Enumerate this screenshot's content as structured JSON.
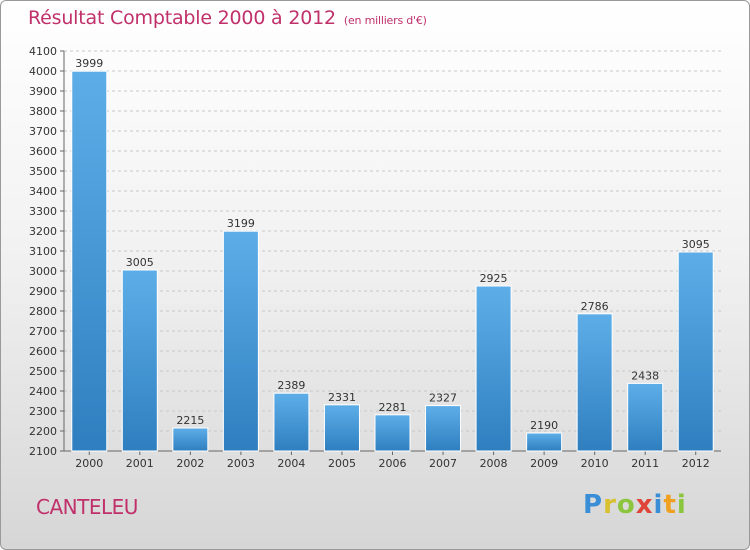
{
  "title": "Résultat Comptable 2000 à 2012",
  "subtitle": "(en milliers d'€)",
  "commune": "CANTELEU",
  "logo_letters": [
    "P",
    "r",
    "o",
    "x",
    "i",
    "t",
    "i"
  ],
  "colors": {
    "bar_top": "#5daee8",
    "bar_bottom": "#2f7fc0",
    "title": "#c0306a",
    "grid": "#c8c8c8"
  },
  "chart_data": {
    "type": "bar",
    "title": "Résultat Comptable 2000 à 2012",
    "categories": [
      "2000",
      "2001",
      "2002",
      "2003",
      "2004",
      "2005",
      "2006",
      "2007",
      "2008",
      "2009",
      "2010",
      "2011",
      "2012"
    ],
    "values": [
      3999,
      3005,
      2215,
      3199,
      2389,
      2331,
      2281,
      2327,
      2925,
      2190,
      2786,
      2438,
      3095
    ],
    "ylim": [
      2100,
      4100
    ],
    "ytick_step": 100,
    "grid": true
  }
}
